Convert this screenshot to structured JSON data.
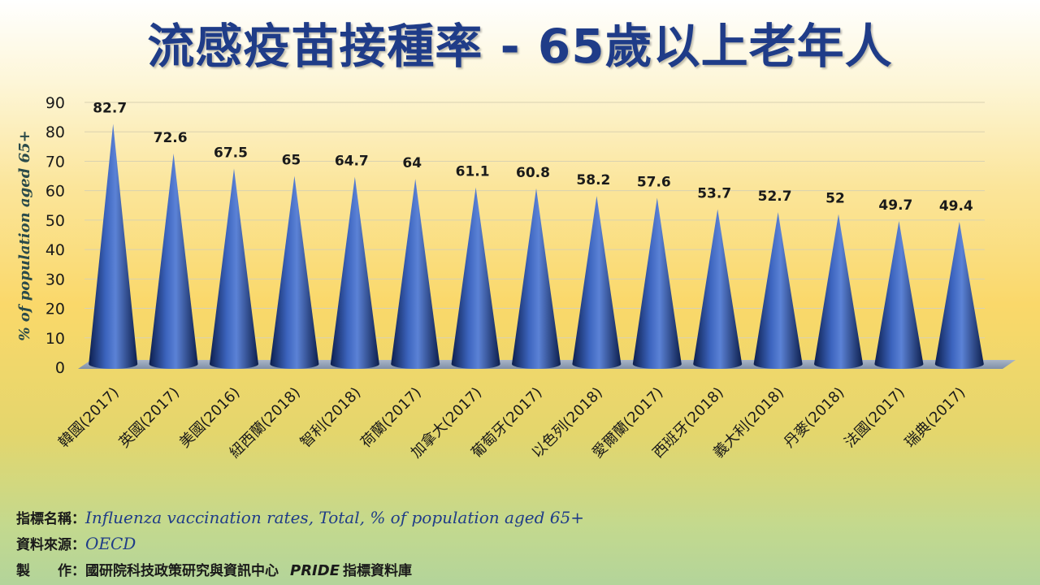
{
  "title": "流感疫苗接種率 - 65歲以上老年人",
  "chart_data": {
    "type": "bar",
    "shape": "cone",
    "ylabel": "% of population aged 65+",
    "ylim": [
      0,
      90
    ],
    "yticks": [
      0,
      10,
      20,
      30,
      40,
      50,
      60,
      70,
      80,
      90
    ],
    "grid": true,
    "categories": [
      "韓國(2017)",
      "英國(2017)",
      "美國(2016)",
      "紐西蘭(2018)",
      "智利(2018)",
      "荷蘭(2017)",
      "加拿大(2017)",
      "葡萄牙(2017)",
      "以色列(2018)",
      "愛爾蘭(2017)",
      "西班牙(2018)",
      "義大利(2018)",
      "丹麥(2018)",
      "法國(2017)",
      "瑞典(2017)"
    ],
    "values": [
      82.7,
      72.6,
      67.5,
      65,
      64.7,
      64,
      61.1,
      60.8,
      58.2,
      57.6,
      53.7,
      52.7,
      52,
      49.7,
      49.4
    ],
    "value_labels": [
      "82.7",
      "72.6",
      "67.5",
      "65",
      "64.7",
      "64",
      "61.1",
      "60.8",
      "58.2",
      "57.6",
      "53.7",
      "52.7",
      "52",
      "49.7",
      "49.4"
    ],
    "colors": {
      "bar_dark": "#0d1f4d",
      "bar_light": "#5b82d6",
      "floor": "#8c9db4",
      "axis_text": "#1a1a1a",
      "ylabel": "#2a4a4a"
    }
  },
  "footer": {
    "indicator_label": "指標名稱：",
    "indicator_value": "Influenza vaccination rates, Total, % of population aged 65+",
    "source_label": "資料來源：",
    "source_value": "OECD",
    "maker_label": "製　　作：",
    "maker_value": "國研院科技政策研究與資訊中心",
    "maker_db": "PRIDE",
    "maker_suffix": "指標資料庫"
  }
}
